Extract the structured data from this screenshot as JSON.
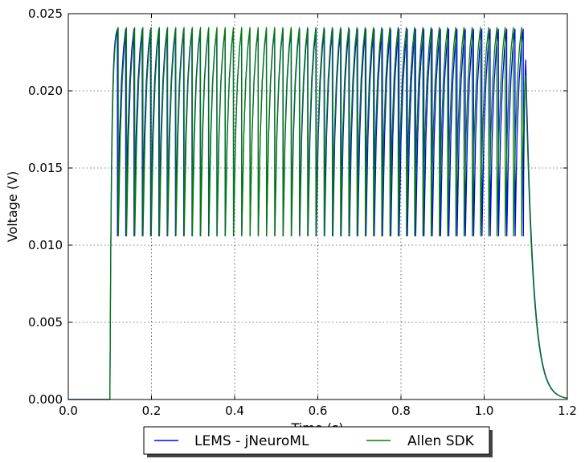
{
  "chart_data": {
    "type": "line",
    "xlabel": "Time (s)",
    "ylabel": "Voltage (V)",
    "xlim": [
      0.0,
      1.2
    ],
    "ylim": [
      0.0,
      0.025
    ],
    "x_ticks": [
      "0.0",
      "0.2",
      "0.4",
      "0.6",
      "0.8",
      "1.0",
      "1.2"
    ],
    "y_ticks": [
      "0.000",
      "0.005",
      "0.010",
      "0.015",
      "0.020",
      "0.025"
    ],
    "grid": true,
    "legend_position": "bottom-center",
    "series": [
      {
        "name": "LEMS - jNeuroML",
        "color": "#0000ff",
        "baseline": 0.0,
        "stim_start": 0.1,
        "stim_end": 1.1,
        "first_spike_time": 0.118,
        "last_spike_time": 1.094,
        "spike_count": 50,
        "spike_peak": 0.024,
        "reset_voltage": 0.0106,
        "end_peak": 0.022,
        "end_peak_time": 1.1,
        "decay_end": 1.2
      },
      {
        "name": "Allen SDK",
        "color": "#008000",
        "baseline": 0.0,
        "stim_start": 0.1,
        "stim_end": 1.1,
        "first_spike_time": 0.12,
        "last_spike_time": 1.09,
        "spike_count": 50,
        "spike_peak": 0.0241,
        "reset_voltage": 0.0106,
        "end_peak": 0.021,
        "end_peak_time": 1.1,
        "decay_end": 1.2
      }
    ]
  }
}
